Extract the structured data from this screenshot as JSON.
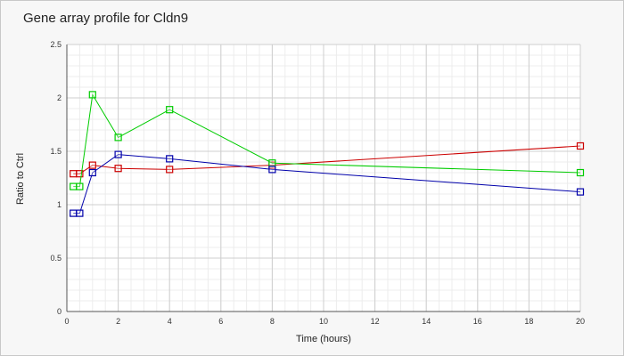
{
  "chart_data": {
    "type": "line",
    "title": "Gene array profile for Cldn9",
    "xlabel": "Time (hours)",
    "ylabel": "Ratio to Ctrl",
    "xlim": [
      0,
      20
    ],
    "ylim": [
      0,
      2.5
    ],
    "xticks": [
      "0",
      "2",
      "4",
      "6",
      "8",
      "10",
      "12",
      "14",
      "16",
      "18",
      "20"
    ],
    "yticks": [
      "0",
      "0.5",
      "1",
      "1.5",
      "2",
      "2.5"
    ],
    "grid": true,
    "marker": "square",
    "series": [
      {
        "color": "#cc0000",
        "x": [
          0.25,
          0.5,
          1,
          2,
          4,
          8,
          20
        ],
        "y": [
          1.29,
          1.29,
          1.37,
          1.34,
          1.33,
          1.37,
          1.55
        ]
      },
      {
        "color": "#00cc00",
        "x": [
          0.25,
          0.5,
          1,
          2,
          4,
          8,
          20
        ],
        "y": [
          1.17,
          1.17,
          2.03,
          1.63,
          1.89,
          1.39,
          1.3
        ]
      },
      {
        "color": "#0000aa",
        "x": [
          0.25,
          0.5,
          1,
          2,
          4,
          8,
          20
        ],
        "y": [
          0.92,
          0.92,
          1.3,
          1.47,
          1.43,
          1.33,
          1.12
        ]
      }
    ]
  }
}
